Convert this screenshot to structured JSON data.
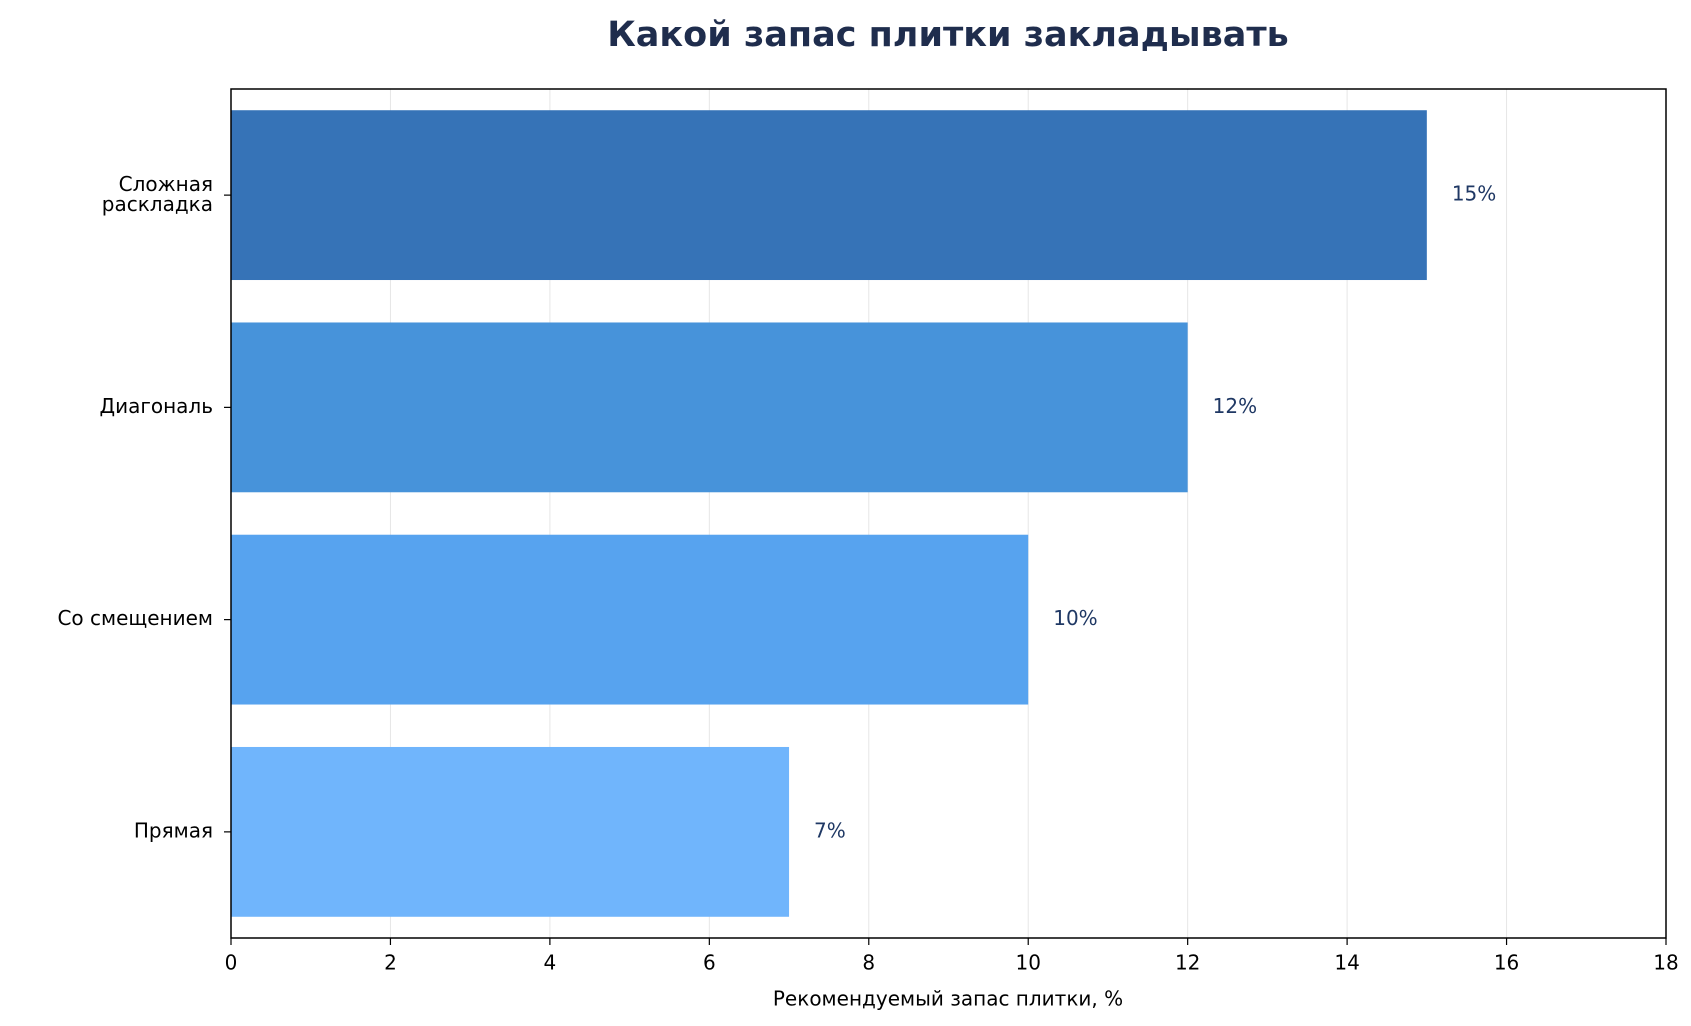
{
  "chart_data": {
    "type": "barh",
    "title": "Какой запас плитки закладывать",
    "xlabel": "Рекомендуемый запас плитки, %",
    "categories": [
      "Сложная\nраскладка",
      "Диагональ",
      "Со смещением",
      "Прямая"
    ],
    "values": [
      15,
      12,
      10,
      7
    ],
    "value_labels": [
      "15%",
      "12%",
      "10%",
      "7%"
    ],
    "colors": [
      "#2f6eb5",
      "#418fd9",
      "#52a0ee",
      "#6bb3fc"
    ],
    "xlim": [
      0,
      18
    ],
    "xticks": [
      0,
      2,
      4,
      6,
      8,
      10,
      12,
      14,
      16,
      18
    ],
    "grid": true
  }
}
